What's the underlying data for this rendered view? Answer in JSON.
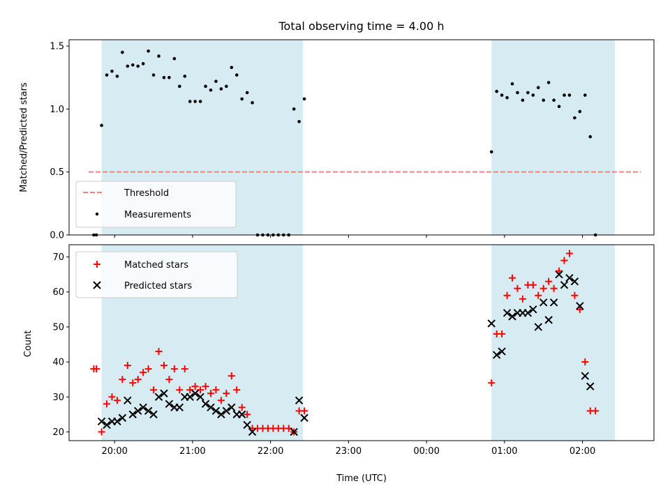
{
  "colors": {
    "shade": "#add8e6",
    "threshold": "#ff7f7f",
    "measurement": "#000000",
    "matched": "#ff0000",
    "predicted": "#000000"
  },
  "chart_data": [
    {
      "type": "scatter",
      "title": "Total observing time = 4.00 h",
      "xlabel": "",
      "ylabel": "Matched/Predicted stars",
      "xlim": [
        "19:25",
        "02:55"
      ],
      "ylim": [
        0,
        1.55
      ],
      "yticks": [
        0.0,
        0.5,
        1.0,
        1.5
      ],
      "ytick_labels": [
        "0.0",
        "0.5",
        "1.0",
        "1.5"
      ],
      "shaded_intervals": [
        [
          "19:50",
          "22:25"
        ],
        [
          "00:50",
          "02:25"
        ]
      ],
      "threshold": {
        "name": "Threshold",
        "value": 0.5,
        "x_range": [
          "19:40",
          "02:45"
        ]
      },
      "series": [
        {
          "name": "Measurements",
          "points": [
            [
              "19:44",
              0.0
            ],
            [
              "19:46",
              0.0
            ],
            [
              "19:50",
              0.87
            ],
            [
              "19:54",
              1.27
            ],
            [
              "19:58",
              1.3
            ],
            [
              "20:02",
              1.26
            ],
            [
              "20:06",
              1.45
            ],
            [
              "20:10",
              1.34
            ],
            [
              "20:14",
              1.35
            ],
            [
              "20:18",
              1.34
            ],
            [
              "20:22",
              1.36
            ],
            [
              "20:26",
              1.46
            ],
            [
              "20:30",
              1.27
            ],
            [
              "20:34",
              1.42
            ],
            [
              "20:38",
              1.25
            ],
            [
              "20:42",
              1.25
            ],
            [
              "20:46",
              1.4
            ],
            [
              "20:50",
              1.18
            ],
            [
              "20:54",
              1.26
            ],
            [
              "20:58",
              1.06
            ],
            [
              "21:02",
              1.06
            ],
            [
              "21:06",
              1.06
            ],
            [
              "21:10",
              1.18
            ],
            [
              "21:14",
              1.15
            ],
            [
              "21:18",
              1.22
            ],
            [
              "21:22",
              1.16
            ],
            [
              "21:26",
              1.18
            ],
            [
              "21:30",
              1.33
            ],
            [
              "21:34",
              1.27
            ],
            [
              "21:38",
              1.08
            ],
            [
              "21:42",
              1.13
            ],
            [
              "21:46",
              1.05
            ],
            [
              "21:50",
              0.0
            ],
            [
              "21:54",
              0.0
            ],
            [
              "21:58",
              0.0
            ],
            [
              "22:02",
              0.0
            ],
            [
              "22:06",
              0.0
            ],
            [
              "22:10",
              0.0
            ],
            [
              "22:14",
              0.0
            ],
            [
              "22:18",
              1.0
            ],
            [
              "22:22",
              0.9
            ],
            [
              "22:26",
              1.08
            ],
            [
              "00:50",
              0.66
            ],
            [
              "00:54",
              1.14
            ],
            [
              "00:58",
              1.11
            ],
            [
              "01:02",
              1.09
            ],
            [
              "01:06",
              1.2
            ],
            [
              "01:10",
              1.13
            ],
            [
              "01:14",
              1.07
            ],
            [
              "01:18",
              1.13
            ],
            [
              "01:22",
              1.11
            ],
            [
              "01:26",
              1.17
            ],
            [
              "01:30",
              1.07
            ],
            [
              "01:34",
              1.21
            ],
            [
              "01:38",
              1.07
            ],
            [
              "01:42",
              1.02
            ],
            [
              "01:46",
              1.11
            ],
            [
              "01:50",
              1.11
            ],
            [
              "01:54",
              0.93
            ],
            [
              "01:58",
              0.98
            ],
            [
              "02:02",
              1.11
            ],
            [
              "02:06",
              0.78
            ],
            [
              "02:10",
              0.0
            ]
          ]
        }
      ],
      "legend": {
        "placement": "lower-left",
        "entries": [
          "Threshold",
          "Measurements"
        ]
      }
    },
    {
      "type": "scatter",
      "title": "",
      "xlabel": "Time (UTC)",
      "ylabel": "Count",
      "xlim": [
        "19:25",
        "02:55"
      ],
      "ylim": [
        17.5,
        73.5
      ],
      "xticks": [
        "20:00",
        "21:00",
        "22:00",
        "23:00",
        "00:00",
        "01:00",
        "02:00"
      ],
      "yticks": [
        20,
        30,
        40,
        50,
        60,
        70
      ],
      "ytick_labels": [
        "20",
        "30",
        "40",
        "50",
        "60",
        "70"
      ],
      "shaded_intervals": [
        [
          "19:50",
          "22:25"
        ],
        [
          "00:50",
          "02:25"
        ]
      ],
      "series": [
        {
          "name": "Matched stars",
          "marker": "+",
          "points": [
            [
              "19:44",
              38
            ],
            [
              "19:46",
              38
            ],
            [
              "19:50",
              20
            ],
            [
              "19:54",
              28
            ],
            [
              "19:58",
              30
            ],
            [
              "20:02",
              29
            ],
            [
              "20:06",
              35
            ],
            [
              "20:10",
              39
            ],
            [
              "20:14",
              34
            ],
            [
              "20:18",
              35
            ],
            [
              "20:22",
              37
            ],
            [
              "20:26",
              38
            ],
            [
              "20:30",
              32
            ],
            [
              "20:34",
              43
            ],
            [
              "20:38",
              39
            ],
            [
              "20:42",
              35
            ],
            [
              "20:46",
              38
            ],
            [
              "20:50",
              32
            ],
            [
              "20:54",
              38
            ],
            [
              "20:58",
              32
            ],
            [
              "21:02",
              33
            ],
            [
              "21:06",
              32
            ],
            [
              "21:10",
              33
            ],
            [
              "21:14",
              31
            ],
            [
              "21:18",
              32
            ],
            [
              "21:22",
              29
            ],
            [
              "21:26",
              31
            ],
            [
              "21:30",
              36
            ],
            [
              "21:34",
              32
            ],
            [
              "21:38",
              27
            ],
            [
              "21:42",
              25
            ],
            [
              "21:46",
              21
            ],
            [
              "21:50",
              21
            ],
            [
              "21:54",
              21
            ],
            [
              "21:58",
              21
            ],
            [
              "22:02",
              21
            ],
            [
              "22:06",
              21
            ],
            [
              "22:10",
              21
            ],
            [
              "22:14",
              21
            ],
            [
              "22:18",
              20
            ],
            [
              "22:22",
              26
            ],
            [
              "22:26",
              26
            ],
            [
              "00:50",
              34
            ],
            [
              "00:54",
              48
            ],
            [
              "00:58",
              48
            ],
            [
              "01:02",
              59
            ],
            [
              "01:06",
              64
            ],
            [
              "01:10",
              61
            ],
            [
              "01:14",
              58
            ],
            [
              "01:18",
              62
            ],
            [
              "01:22",
              62
            ],
            [
              "01:26",
              59
            ],
            [
              "01:30",
              61
            ],
            [
              "01:34",
              63
            ],
            [
              "01:38",
              61
            ],
            [
              "01:42",
              66
            ],
            [
              "01:46",
              69
            ],
            [
              "01:50",
              71
            ],
            [
              "01:54",
              59
            ],
            [
              "01:58",
              55
            ],
            [
              "02:02",
              40
            ],
            [
              "02:06",
              26
            ],
            [
              "02:10",
              26
            ]
          ]
        },
        {
          "name": "Predicted stars",
          "marker": "x",
          "points": [
            [
              "19:50",
              23
            ],
            [
              "19:54",
              22
            ],
            [
              "19:58",
              23
            ],
            [
              "20:02",
              23
            ],
            [
              "20:06",
              24
            ],
            [
              "20:10",
              29
            ],
            [
              "20:14",
              25
            ],
            [
              "20:18",
              26
            ],
            [
              "20:22",
              27
            ],
            [
              "20:26",
              26
            ],
            [
              "20:30",
              25
            ],
            [
              "20:34",
              30
            ],
            [
              "20:38",
              31
            ],
            [
              "20:42",
              28
            ],
            [
              "20:46",
              27
            ],
            [
              "20:50",
              27
            ],
            [
              "20:54",
              30
            ],
            [
              "20:58",
              30
            ],
            [
              "21:02",
              31
            ],
            [
              "21:06",
              30
            ],
            [
              "21:10",
              28
            ],
            [
              "21:14",
              27
            ],
            [
              "21:18",
              26
            ],
            [
              "21:22",
              25
            ],
            [
              "21:26",
              26
            ],
            [
              "21:30",
              27
            ],
            [
              "21:34",
              25
            ],
            [
              "21:38",
              25
            ],
            [
              "21:42",
              22
            ],
            [
              "21:46",
              20
            ],
            [
              "22:18",
              20
            ],
            [
              "22:22",
              29
            ],
            [
              "22:26",
              24
            ],
            [
              "00:50",
              51
            ],
            [
              "00:54",
              42
            ],
            [
              "00:58",
              43
            ],
            [
              "01:02",
              54
            ],
            [
              "01:06",
              53
            ],
            [
              "01:10",
              54
            ],
            [
              "01:14",
              54
            ],
            [
              "01:18",
              54
            ],
            [
              "01:22",
              55
            ],
            [
              "01:26",
              50
            ],
            [
              "01:30",
              57
            ],
            [
              "01:34",
              52
            ],
            [
              "01:38",
              57
            ],
            [
              "01:42",
              65
            ],
            [
              "01:46",
              62
            ],
            [
              "01:50",
              64
            ],
            [
              "01:54",
              63
            ],
            [
              "01:58",
              56
            ],
            [
              "02:02",
              36
            ],
            [
              "02:06",
              33
            ]
          ]
        }
      ],
      "legend": {
        "placement": "upper-left",
        "entries": [
          "Matched stars",
          "Predicted stars"
        ]
      }
    }
  ]
}
